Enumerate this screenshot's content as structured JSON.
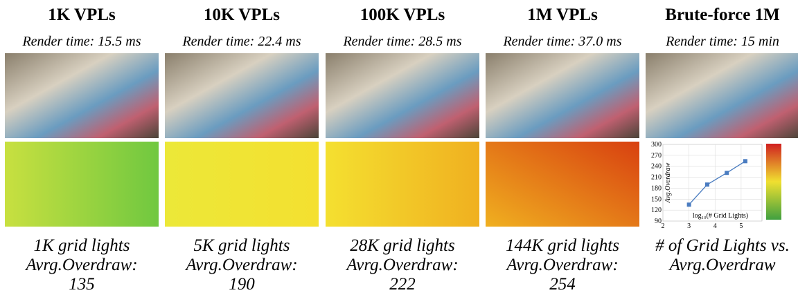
{
  "columns": [
    {
      "title": "1K VPLs",
      "render_time": "Render time: 15.5 ms",
      "grid_lights": "1K grid lights",
      "overdraw_label": "Avrg.Overdraw:",
      "overdraw": 135
    },
    {
      "title": "10K VPLs",
      "render_time": "Render time: 22.4 ms",
      "grid_lights": "5K grid lights",
      "overdraw_label": "Avrg.Overdraw:",
      "overdraw": 190
    },
    {
      "title": "100K VPLs",
      "render_time": "Render time: 28.5 ms",
      "grid_lights": "28K grid lights",
      "overdraw_label": "Avrg.Overdraw:",
      "overdraw": 222
    },
    {
      "title": "1M VPLs",
      "render_time": "Render time: 37.0 ms",
      "grid_lights": "144K grid lights",
      "overdraw_label": "Avrg.Overdraw:",
      "overdraw": 254
    }
  ],
  "last_column": {
    "title": "Brute-force 1M",
    "render_time": "Render time: 15 min",
    "caption": [
      "# of Grid Lights vs.",
      "Avrg.Overdraw"
    ]
  },
  "chart_data": {
    "type": "line",
    "x_label": "log₁₀(# Grid Lights)",
    "y_label": "Avg.Overdraw",
    "x": [
      3.0,
      3.7,
      4.45,
      5.16
    ],
    "series": [
      {
        "name": "Avg.Overdraw",
        "color": "#4a7cc0",
        "values": [
          135,
          190,
          222,
          254
        ]
      }
    ],
    "xlim": [
      2,
      5.8
    ],
    "xticks": [
      2,
      3,
      4,
      5
    ],
    "ylim": [
      90,
      300
    ],
    "yticks": [
      90,
      120,
      150,
      180,
      210,
      240,
      270,
      300
    ],
    "grid": true
  }
}
